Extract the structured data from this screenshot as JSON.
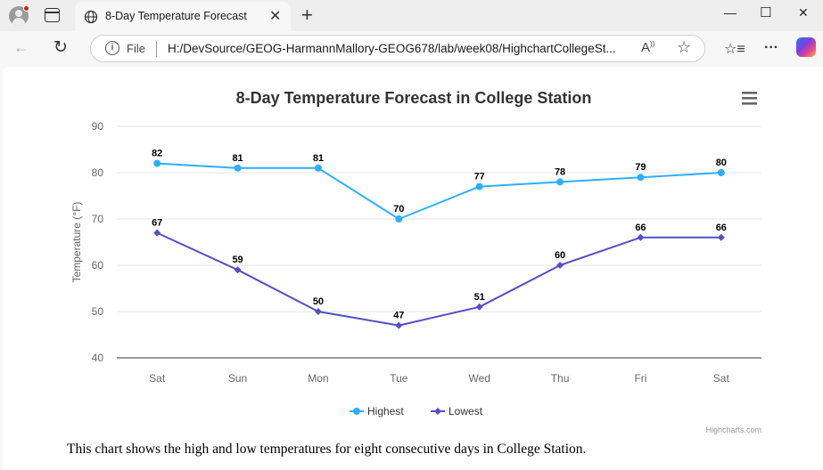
{
  "browser": {
    "tab_title": "8-Day Temperature Forecast",
    "url_scheme_label": "File",
    "url": "H:/DevSource/GEOG-HarmannMallory-GEOG678/lab/week08/HighchartCollegeSt..."
  },
  "page": {
    "caption": "This chart shows the high and low temperatures for eight consecutive days in College Station.",
    "credits": "Highcharts.com"
  },
  "chart_data": {
    "type": "line",
    "title": "8-Day Temperature Forecast in College Station",
    "ylabel": "Temperature (°F)",
    "xlabel": "",
    "ylim": [
      40,
      90
    ],
    "yticks": [
      40,
      50,
      60,
      70,
      80,
      90
    ],
    "categories": [
      "Sat",
      "Sun",
      "Mon",
      "Tue",
      "Wed",
      "Thu",
      "Fri",
      "Sat"
    ],
    "grid": true,
    "legend_position": "bottom-center",
    "series": [
      {
        "name": "Highest",
        "values": [
          82,
          81,
          81,
          70,
          77,
          78,
          79,
          80
        ],
        "color": "#2caffe",
        "marker": "circle"
      },
      {
        "name": "Lowest",
        "values": [
          67,
          59,
          50,
          47,
          51,
          60,
          66,
          66
        ],
        "color": "#544fc5",
        "marker": "diamond"
      }
    ]
  },
  "icons": {
    "menu": "hamburger-menu-icon",
    "tab": "globe-icon"
  }
}
